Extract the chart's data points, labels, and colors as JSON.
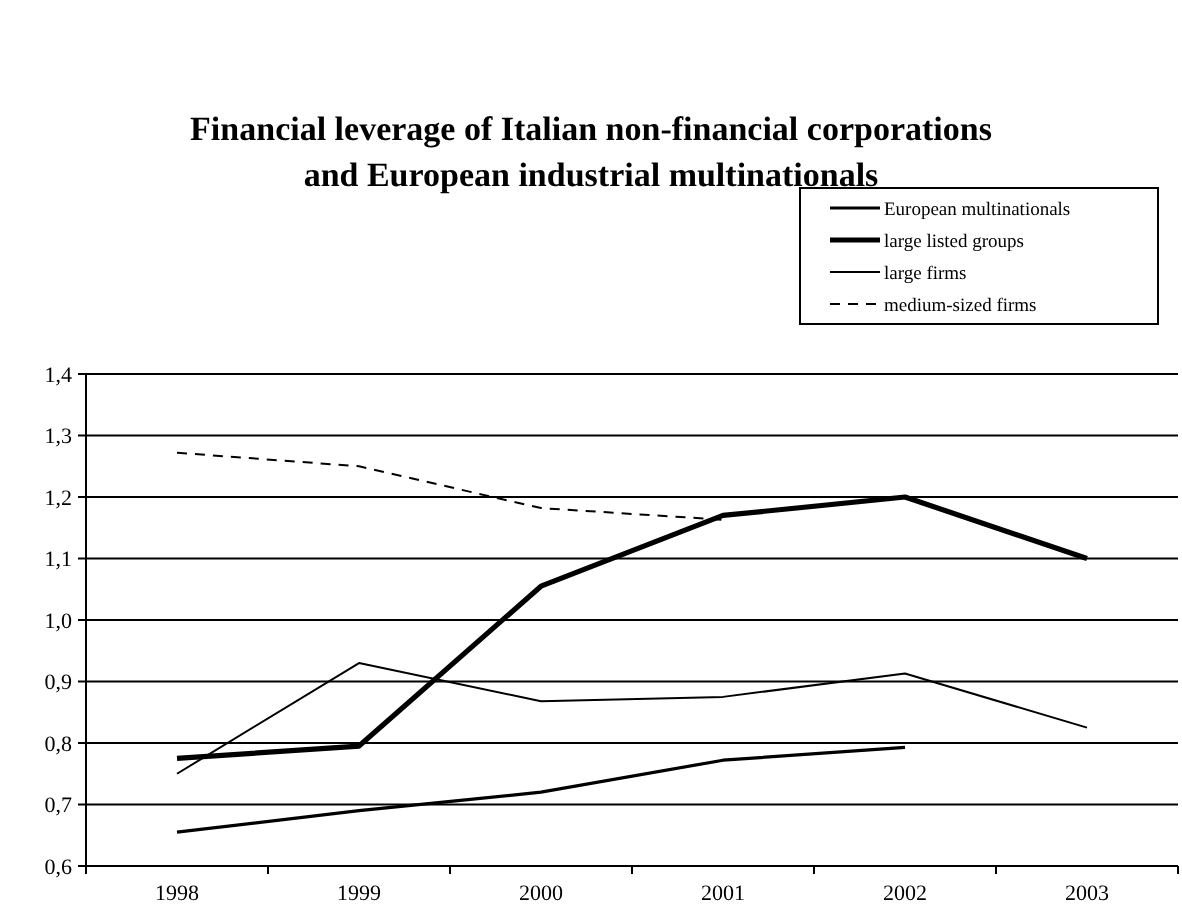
{
  "chart_data": {
    "type": "line",
    "title": "Financial leverage of Italian non-financial corporations and European industrial multinationals",
    "categories": [
      "1998",
      "1999",
      "2000",
      "2001",
      "2002",
      "2003"
    ],
    "series": [
      {
        "name": "European multinationals",
        "color": "#000000",
        "values": [
          0.655,
          0.69,
          0.72,
          0.772,
          0.793,
          null
        ]
      },
      {
        "name": "large listed groups",
        "color": "#000000",
        "values": [
          0.775,
          0.795,
          1.055,
          1.17,
          1.2,
          1.1
        ]
      },
      {
        "name": "large firms",
        "color": "#000000",
        "values": [
          0.75,
          0.93,
          0.868,
          0.875,
          0.913,
          0.825
        ]
      },
      {
        "name": "medium-sized firms",
        "color": "#000000",
        "values": [
          1.272,
          1.25,
          1.182,
          1.163,
          null,
          null
        ],
        "line_style": "dashed"
      }
    ],
    "ylim": [
      0.6,
      1.4
    ],
    "yticks": [
      {
        "value": 0.6,
        "label": "0,6"
      },
      {
        "value": 0.7,
        "label": "0,7"
      },
      {
        "value": 0.8,
        "label": "0,8"
      },
      {
        "value": 0.9,
        "label": "0,9"
      },
      {
        "value": 1.0,
        "label": "1,0"
      },
      {
        "value": 1.1,
        "label": "1,1"
      },
      {
        "value": 1.2,
        "label": "1,2"
      },
      {
        "value": 1.3,
        "label": "1,3"
      },
      {
        "value": 1.4,
        "label": "1,4"
      }
    ],
    "grid": "y",
    "legend": "top right",
    "marker": "none",
    "line_style": "solid"
  }
}
